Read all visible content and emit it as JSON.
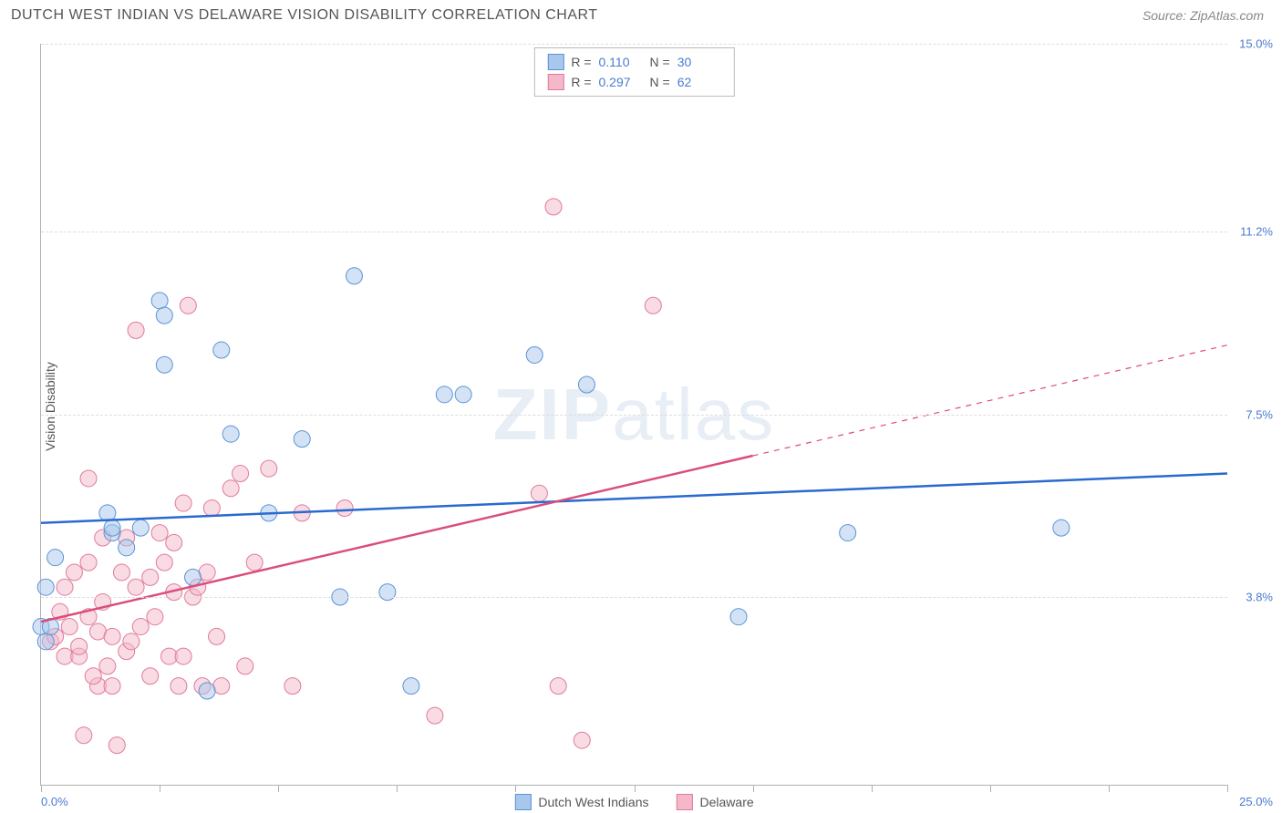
{
  "header": {
    "title": "DUTCH WEST INDIAN VS DELAWARE VISION DISABILITY CORRELATION CHART",
    "source": "Source: ZipAtlas.com"
  },
  "y_axis_label": "Vision Disability",
  "watermark": {
    "bold": "ZIP",
    "rest": "atlas"
  },
  "chart": {
    "type": "scatter",
    "xlim": [
      0,
      25
    ],
    "ylim": [
      0,
      15
    ],
    "x_min_label": "0.0%",
    "x_max_label": "25.0%",
    "y_ticks": [
      {
        "v": 3.8,
        "label": "3.8%"
      },
      {
        "v": 7.5,
        "label": "7.5%"
      },
      {
        "v": 11.2,
        "label": "11.2%"
      },
      {
        "v": 15.0,
        "label": "15.0%"
      }
    ],
    "x_tick_positions": [
      0,
      2.5,
      5,
      7.5,
      10,
      12.5,
      15,
      17.5,
      20,
      22.5,
      25
    ],
    "gridline_color": "#dddddd",
    "axis_color": "#b0b0b0",
    "background_color": "#ffffff",
    "marker_radius": 9,
    "marker_opacity": 0.5,
    "line_width": 2.5,
    "series": [
      {
        "name": "Dutch West Indians",
        "color_fill": "#a8c7ec",
        "color_stroke": "#5b93d6",
        "trend_color": "#2a6ad0",
        "r": "0.110",
        "n": "30",
        "trend": {
          "y_start": 5.3,
          "y_end": 6.3,
          "x_solid_end": 25
        },
        "points": [
          [
            0.0,
            3.2
          ],
          [
            0.1,
            2.9
          ],
          [
            0.2,
            3.2
          ],
          [
            0.1,
            4.0
          ],
          [
            0.3,
            4.6
          ],
          [
            1.4,
            5.5
          ],
          [
            1.5,
            5.1
          ],
          [
            1.5,
            5.2
          ],
          [
            1.8,
            4.8
          ],
          [
            2.1,
            5.2
          ],
          [
            2.5,
            9.8
          ],
          [
            2.6,
            9.5
          ],
          [
            2.6,
            8.5
          ],
          [
            3.2,
            4.2
          ],
          [
            3.5,
            1.9
          ],
          [
            3.8,
            8.8
          ],
          [
            4.0,
            7.1
          ],
          [
            4.8,
            5.5
          ],
          [
            5.5,
            7.0
          ],
          [
            6.3,
            3.8
          ],
          [
            6.6,
            10.3
          ],
          [
            7.3,
            3.9
          ],
          [
            8.5,
            7.9
          ],
          [
            8.9,
            7.9
          ],
          [
            10.4,
            8.7
          ],
          [
            11.5,
            8.1
          ],
          [
            14.7,
            3.4
          ],
          [
            17.0,
            5.1
          ],
          [
            21.5,
            5.2
          ],
          [
            7.8,
            2.0
          ]
        ]
      },
      {
        "name": "Delaware",
        "color_fill": "#f4b8c8",
        "color_stroke": "#e17a9b",
        "trend_color": "#da4d7a",
        "r": "0.297",
        "n": "62",
        "trend": {
          "y_start": 3.3,
          "y_end": 8.9,
          "x_solid_end": 15
        },
        "points": [
          [
            0.2,
            2.9
          ],
          [
            0.3,
            3.0
          ],
          [
            0.5,
            2.6
          ],
          [
            0.6,
            3.2
          ],
          [
            0.8,
            2.6
          ],
          [
            0.8,
            2.8
          ],
          [
            0.9,
            1.0
          ],
          [
            1.0,
            3.4
          ],
          [
            1.0,
            6.2
          ],
          [
            1.2,
            3.1
          ],
          [
            1.2,
            2.0
          ],
          [
            1.3,
            5.0
          ],
          [
            1.4,
            2.4
          ],
          [
            1.5,
            3.0
          ],
          [
            1.5,
            2.0
          ],
          [
            1.6,
            0.8
          ],
          [
            1.7,
            4.3
          ],
          [
            1.8,
            2.7
          ],
          [
            1.8,
            5.0
          ],
          [
            1.9,
            2.9
          ],
          [
            2.0,
            4.0
          ],
          [
            2.0,
            9.2
          ],
          [
            2.3,
            4.2
          ],
          [
            2.3,
            2.2
          ],
          [
            2.5,
            5.1
          ],
          [
            2.6,
            4.5
          ],
          [
            2.7,
            2.6
          ],
          [
            2.8,
            3.9
          ],
          [
            2.8,
            4.9
          ],
          [
            2.9,
            2.0
          ],
          [
            3.0,
            5.7
          ],
          [
            3.1,
            9.7
          ],
          [
            3.2,
            3.8
          ],
          [
            3.3,
            4.0
          ],
          [
            3.4,
            2.0
          ],
          [
            3.5,
            4.3
          ],
          [
            3.6,
            5.6
          ],
          [
            3.8,
            2.0
          ],
          [
            4.0,
            6.0
          ],
          [
            4.2,
            6.3
          ],
          [
            4.3,
            2.4
          ],
          [
            4.5,
            4.5
          ],
          [
            4.8,
            6.4
          ],
          [
            5.3,
            2.0
          ],
          [
            5.5,
            5.5
          ],
          [
            6.4,
            5.6
          ],
          [
            8.3,
            1.4
          ],
          [
            10.5,
            5.9
          ],
          [
            10.8,
            11.7
          ],
          [
            10.9,
            2.0
          ],
          [
            11.4,
            0.9
          ],
          [
            12.9,
            9.7
          ],
          [
            1.1,
            2.2
          ],
          [
            0.7,
            4.3
          ],
          [
            0.4,
            3.5
          ],
          [
            0.5,
            4.0
          ],
          [
            1.0,
            4.5
          ],
          [
            1.3,
            3.7
          ],
          [
            2.1,
            3.2
          ],
          [
            2.4,
            3.4
          ],
          [
            3.0,
            2.6
          ],
          [
            3.7,
            3.0
          ]
        ]
      }
    ]
  },
  "stats_labels": {
    "r": "R  =",
    "n": "N  ="
  },
  "legend_labels": [
    "Dutch West Indians",
    "Delaware"
  ]
}
